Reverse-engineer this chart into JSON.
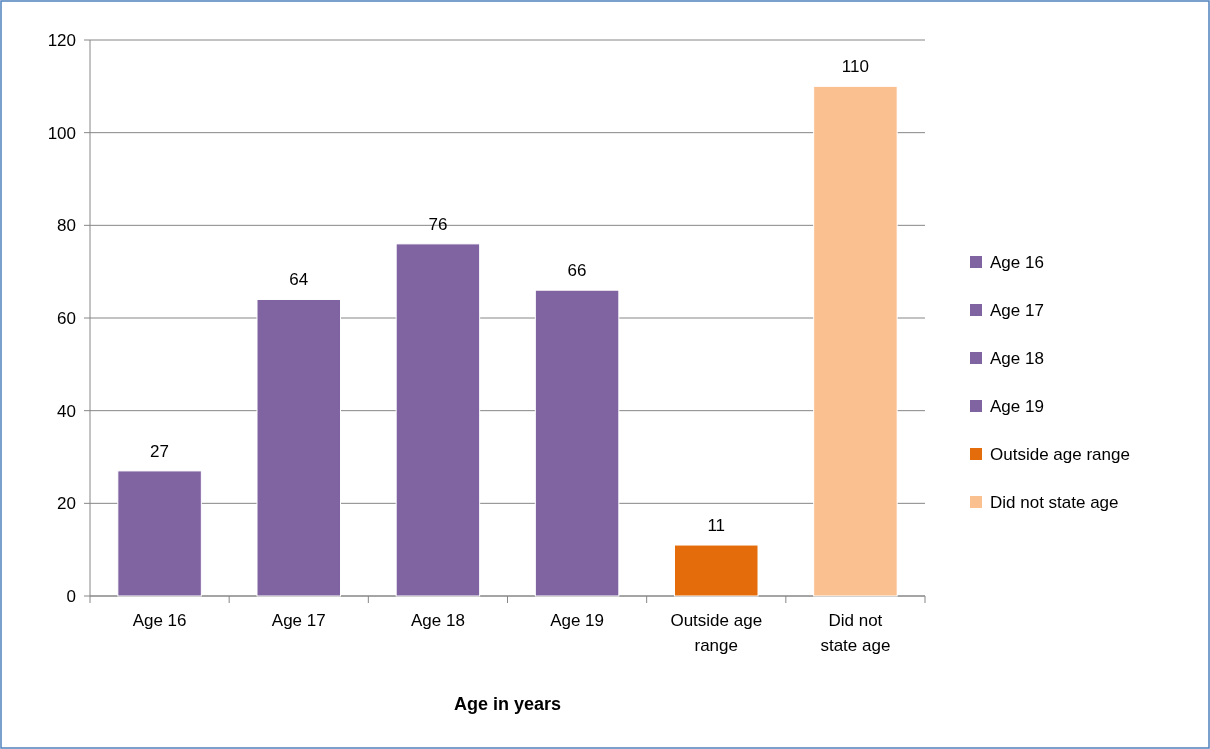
{
  "chart_data": {
    "type": "bar",
    "xlabel": "Age in years",
    "stacked": true,
    "categories": [
      "Age 16",
      "Age 17",
      "Age 18",
      "Age 19",
      "Outside age range",
      "Did not state age"
    ],
    "series": [
      {
        "name": "Age 16",
        "color": "#8064a2",
        "values": [
          27,
          null,
          null,
          null,
          null,
          null
        ]
      },
      {
        "name": "Age 17",
        "color": "#8064a2",
        "values": [
          null,
          64,
          null,
          null,
          null,
          null
        ]
      },
      {
        "name": "Age 18",
        "color": "#8064a2",
        "values": [
          null,
          null,
          76,
          null,
          null,
          null
        ]
      },
      {
        "name": "Age 19",
        "color": "#8064a2",
        "values": [
          null,
          null,
          null,
          66,
          null,
          null
        ]
      },
      {
        "name": "Outside age range",
        "color": "#e46c0a",
        "values": [
          null,
          null,
          null,
          null,
          11,
          null
        ]
      },
      {
        "name": "Did not state age",
        "color": "#fac090",
        "values": [
          null,
          null,
          null,
          null,
          null,
          110
        ]
      }
    ],
    "ylim": [
      0,
      120
    ],
    "yticks": [
      0,
      20,
      40,
      60,
      80,
      100,
      120
    ],
    "grid": "y",
    "data_labels": true,
    "legend": "right"
  }
}
